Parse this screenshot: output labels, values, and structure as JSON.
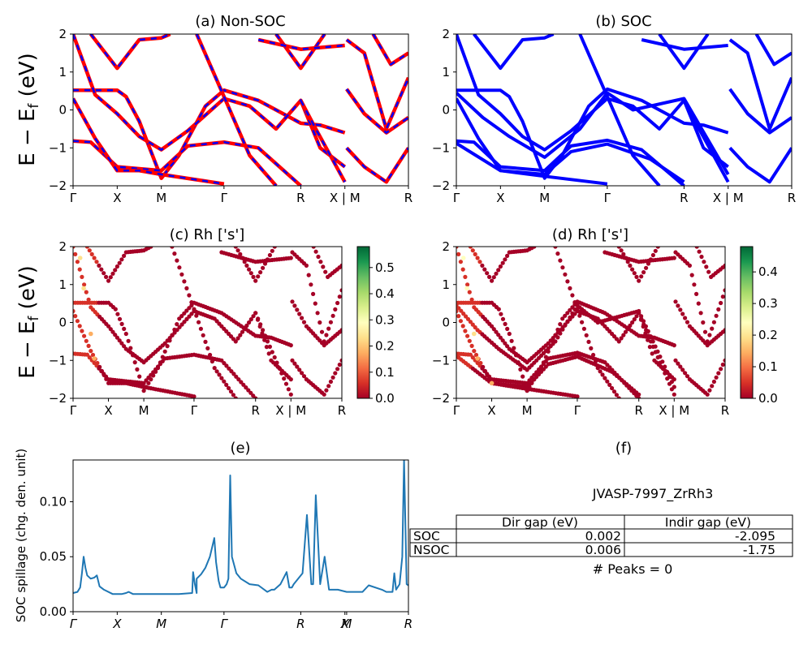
{
  "titles": {
    "a": "(a) Non-SOC",
    "b": "(b) SOC",
    "c": "(c)  Rh ['s']",
    "d": "(d) Rh ['s']",
    "e": "(e)",
    "f": "(f)"
  },
  "axes": {
    "energy_ylabel": "E − E_f (eV)",
    "spillage_ylabel": "SOC spillage (chg. den. unit)",
    "band_xticks": [
      "Γ",
      "X",
      "M",
      "Γ",
      "R",
      "X | M",
      "R"
    ],
    "band_yticks": [
      "2",
      "1",
      "0",
      "−1",
      "−2"
    ],
    "spill_xticks": [
      "Γ",
      "X",
      "M",
      "Γ",
      "R",
      "X",
      "M",
      "R"
    ],
    "spill_yticks": [
      "0.00",
      "0.05",
      "0.10"
    ],
    "cbar_c_ticks": [
      "0.0",
      "0.1",
      "0.2",
      "0.3",
      "0.4",
      "0.5"
    ],
    "cbar_d_ticks": [
      "0.0",
      "0.1",
      "0.2",
      "0.3",
      "0.4"
    ]
  },
  "info": {
    "material": "JVASP-7997_ZrRh3",
    "col_dir": "Dir gap (eV)",
    "col_indir": "Indir gap (eV)",
    "rows": [
      {
        "label": "SOC",
        "dir": "0.002",
        "indir": "-2.095"
      },
      {
        "label": "NSOC",
        "dir": "0.006",
        "indir": "-1.75"
      }
    ],
    "peaks": "# Peaks = 0"
  },
  "colors": {
    "nonsoc_dash": "#0000ff",
    "nonsoc_line": "#ff0000",
    "soc_line": "#0000ff",
    "spillage_line": "#1f77b4",
    "colormap": "RdYlGn"
  },
  "chart_data": [
    {
      "type": "line",
      "panel": "a",
      "title": "(a) Non-SOC",
      "ylabel": "E − E_f (eV)",
      "ylim": [
        -2,
        2
      ],
      "xticks": [
        "Γ",
        "X",
        "M",
        "Γ",
        "R",
        "X | M",
        "R"
      ],
      "k_positions": [
        0,
        0.5,
        1.0,
        1.71,
        2.58,
        3.08,
        3.8
      ],
      "series_note": "blue dashed over red solid (same bands)",
      "bands": [
        [
          [
            0,
            0.52
          ],
          [
            0.5,
            0.52
          ],
          [
            0.6,
            0.35
          ],
          [
            0.75,
            -0.3
          ],
          [
            1.0,
            -1.8
          ],
          [
            1.2,
            -1.2
          ],
          [
            1.5,
            0.1
          ],
          [
            1.71,
            0.52
          ],
          [
            2.1,
            0.25
          ],
          [
            2.58,
            -0.35
          ],
          [
            2.8,
            -0.4
          ],
          [
            3.08,
            -0.6
          ]
        ],
        [
          [
            0,
            -0.82
          ],
          [
            0.2,
            -0.85
          ],
          [
            0.5,
            -1.5
          ],
          [
            0.75,
            -1.55
          ],
          [
            1.0,
            -1.6
          ],
          [
            1.3,
            -0.95
          ],
          [
            1.71,
            -0.85
          ],
          [
            2.1,
            -1.0
          ],
          [
            2.58,
            -2.0
          ]
        ],
        [
          [
            0,
            2.0
          ],
          [
            0.25,
            0.4
          ],
          [
            0.5,
            -0.1
          ],
          [
            0.75,
            -0.7
          ],
          [
            1.0,
            -1.05
          ],
          [
            1.3,
            -0.55
          ],
          [
            1.71,
            0.3
          ],
          [
            2.0,
            0.1
          ],
          [
            2.3,
            -0.5
          ],
          [
            2.58,
            0.25
          ],
          [
            2.8,
            -1.0
          ],
          [
            3.08,
            -1.5
          ]
        ],
        [
          [
            0,
            0.3
          ],
          [
            0.25,
            -0.75
          ],
          [
            0.5,
            -1.6
          ],
          [
            0.75,
            -1.6
          ],
          [
            1.0,
            -1.7
          ],
          [
            1.71,
            -1.95
          ]
        ],
        [
          [
            0.2,
            2.0
          ],
          [
            0.5,
            1.1
          ],
          [
            0.75,
            1.85
          ],
          [
            1.0,
            1.9
          ],
          [
            1.1,
            2.0
          ]
        ],
        [
          [
            1.4,
            2.0
          ],
          [
            1.71,
            0.35
          ],
          [
            2.0,
            -1.2
          ],
          [
            2.3,
            -2.0
          ]
        ],
        [
          [
            2.3,
            2.0
          ],
          [
            2.58,
            1.1
          ],
          [
            2.85,
            2.0
          ]
        ],
        [
          [
            2.58,
            0.25
          ],
          [
            2.75,
            -0.5
          ],
          [
            3.08,
            -1.9
          ]
        ],
        [
          [
            3.1,
            1.85
          ],
          [
            3.3,
            1.5
          ],
          [
            3.55,
            -0.5
          ],
          [
            3.8,
            0.85
          ]
        ],
        [
          [
            3.1,
            0.55
          ],
          [
            3.3,
            -0.1
          ],
          [
            3.55,
            -0.6
          ],
          [
            3.8,
            -0.2
          ]
        ],
        [
          [
            3.1,
            -1.0
          ],
          [
            3.3,
            -1.5
          ],
          [
            3.55,
            -1.9
          ],
          [
            3.8,
            -1.0
          ]
        ],
        [
          [
            3.4,
            2.0
          ],
          [
            3.6,
            1.2
          ],
          [
            3.8,
            1.5
          ]
        ],
        [
          [
            2.1,
            1.85
          ],
          [
            2.58,
            1.6
          ],
          [
            3.08,
            1.7
          ]
        ]
      ]
    },
    {
      "type": "line",
      "panel": "b",
      "title": "(b) SOC",
      "ylabel": "",
      "ylim": [
        -2,
        2
      ],
      "xticks": [
        "Γ",
        "X",
        "M",
        "Γ",
        "R",
        "X | M",
        "R"
      ],
      "k_positions": [
        0,
        0.5,
        1.0,
        1.71,
        2.58,
        3.08,
        3.8
      ],
      "bands": [
        [
          [
            0,
            0.52
          ],
          [
            0.5,
            0.52
          ],
          [
            0.6,
            0.35
          ],
          [
            0.75,
            -0.3
          ],
          [
            1.0,
            -1.8
          ],
          [
            1.2,
            -1.2
          ],
          [
            1.5,
            0.1
          ],
          [
            1.71,
            0.55
          ],
          [
            2.1,
            0.25
          ],
          [
            2.58,
            -0.35
          ],
          [
            2.8,
            -0.4
          ],
          [
            3.08,
            -0.6
          ]
        ],
        [
          [
            0,
            0.45
          ],
          [
            0.3,
            -0.2
          ],
          [
            0.6,
            -0.7
          ],
          [
            1.0,
            -1.25
          ],
          [
            1.4,
            -0.5
          ],
          [
            1.71,
            0.45
          ],
          [
            2.0,
            0.0
          ],
          [
            2.58,
            0.3
          ],
          [
            3.08,
            -1.7
          ]
        ],
        [
          [
            0,
            -0.82
          ],
          [
            0.2,
            -0.85
          ],
          [
            0.5,
            -1.5
          ],
          [
            1.0,
            -1.6
          ],
          [
            1.3,
            -0.95
          ],
          [
            1.71,
            -0.8
          ],
          [
            2.1,
            -1.05
          ],
          [
            2.58,
            -2.0
          ]
        ],
        [
          [
            0,
            -0.88
          ],
          [
            0.5,
            -1.6
          ],
          [
            1.0,
            -1.7
          ],
          [
            1.3,
            -1.1
          ],
          [
            1.71,
            -0.9
          ],
          [
            2.2,
            -1.3
          ],
          [
            2.58,
            -1.9
          ]
        ],
        [
          [
            0,
            2.0
          ],
          [
            0.25,
            0.4
          ],
          [
            0.5,
            -0.1
          ],
          [
            0.75,
            -0.7
          ],
          [
            1.0,
            -1.05
          ],
          [
            1.3,
            -0.55
          ],
          [
            1.71,
            0.3
          ],
          [
            2.0,
            0.1
          ],
          [
            2.3,
            -0.5
          ],
          [
            2.58,
            0.25
          ],
          [
            2.8,
            -1.0
          ],
          [
            3.08,
            -1.5
          ]
        ],
        [
          [
            0,
            0.3
          ],
          [
            0.25,
            -0.75
          ],
          [
            0.5,
            -1.6
          ],
          [
            1.0,
            -1.75
          ],
          [
            1.71,
            -1.95
          ]
        ],
        [
          [
            0.2,
            2.0
          ],
          [
            0.5,
            1.1
          ],
          [
            0.75,
            1.85
          ],
          [
            1.0,
            1.9
          ],
          [
            1.1,
            2.0
          ]
        ],
        [
          [
            1.4,
            2.0
          ],
          [
            1.71,
            0.35
          ],
          [
            2.0,
            -1.2
          ],
          [
            2.3,
            -2.0
          ]
        ],
        [
          [
            2.3,
            2.0
          ],
          [
            2.58,
            1.1
          ],
          [
            2.85,
            2.0
          ]
        ],
        [
          [
            2.58,
            0.25
          ],
          [
            2.75,
            -0.5
          ],
          [
            3.08,
            -1.9
          ]
        ],
        [
          [
            3.1,
            1.85
          ],
          [
            3.3,
            1.5
          ],
          [
            3.55,
            -0.5
          ],
          [
            3.8,
            0.85
          ]
        ],
        [
          [
            3.1,
            0.55
          ],
          [
            3.3,
            -0.1
          ],
          [
            3.55,
            -0.6
          ],
          [
            3.8,
            -0.2
          ]
        ],
        [
          [
            3.1,
            -1.0
          ],
          [
            3.3,
            -1.5
          ],
          [
            3.55,
            -1.9
          ],
          [
            3.8,
            -1.0
          ]
        ],
        [
          [
            3.4,
            2.0
          ],
          [
            3.6,
            1.2
          ],
          [
            3.8,
            1.5
          ]
        ],
        [
          [
            2.1,
            1.85
          ],
          [
            2.58,
            1.6
          ],
          [
            3.08,
            1.7
          ]
        ]
      ]
    },
    {
      "type": "scatter",
      "panel": "c",
      "title": "(c)  Rh ['s']",
      "ylabel": "E − E_f (eV)",
      "ylim": [
        -2,
        2
      ],
      "colorbar_range": [
        0,
        0.58
      ],
      "colorbar_ticks": [
        0,
        0.1,
        0.2,
        0.3,
        0.4,
        0.5
      ],
      "note": "same bands as (a), points colored by Rh s weight; mostly ~0.02, a few up to ~0.25",
      "highlight_points": [
        [
          0.1,
          1.7,
          0.25
        ],
        [
          0.15,
          0.9,
          0.25
        ],
        [
          0.25,
          -0.3,
          0.2
        ],
        [
          0.3,
          -0.95,
          0.15
        ]
      ]
    },
    {
      "type": "scatter",
      "panel": "d",
      "title": "(d) Rh ['s']",
      "ylabel": "",
      "ylim": [
        -2,
        2
      ],
      "colorbar_range": [
        0,
        0.48
      ],
      "colorbar_ticks": [
        0,
        0.1,
        0.2,
        0.3,
        0.4
      ],
      "note": "same bands as (b), points colored by Rh s weight",
      "highlight_points": [
        [
          0.1,
          1.7,
          0.25
        ],
        [
          0.15,
          0.9,
          0.25
        ],
        [
          0.25,
          -0.3,
          0.2
        ],
        [
          0.3,
          -0.95,
          0.15
        ],
        [
          0.5,
          -1.6,
          0.12
        ]
      ]
    },
    {
      "type": "line",
      "panel": "e",
      "title": "(e)",
      "ylabel": "SOC spillage (chg. den. unit)",
      "ylim": [
        0,
        0.138
      ],
      "xticks": [
        "Γ",
        "X",
        "M",
        "Γ",
        "R",
        "X",
        "M",
        "R"
      ],
      "k_positions": [
        0,
        0.5,
        1.0,
        1.71,
        2.58,
        3.08,
        3.1,
        3.8
      ],
      "x": [
        0,
        0.05,
        0.08,
        0.1,
        0.12,
        0.14,
        0.16,
        0.2,
        0.24,
        0.27,
        0.3,
        0.35,
        0.45,
        0.55,
        0.6,
        0.63,
        0.68,
        0.75,
        0.9,
        1.0,
        1.2,
        1.4,
        1.35,
        1.36,
        1.38,
        1.4,
        1.45,
        1.5,
        1.55,
        1.58,
        1.6,
        1.62,
        1.65,
        1.67,
        1.69,
        1.71,
        1.74,
        1.76,
        1.78,
        1.8,
        1.85,
        1.9,
        2.0,
        2.1,
        2.2,
        2.25,
        2.28,
        2.35,
        2.42,
        2.45,
        2.48,
        2.5,
        2.6,
        2.65,
        2.7,
        2.72,
        2.75,
        2.8,
        2.85,
        2.9,
        3.0,
        3.1,
        3.2,
        3.28,
        3.35,
        3.5,
        3.55,
        3.6,
        3.62,
        3.64,
        3.66,
        3.7,
        3.73,
        3.75,
        3.78,
        3.8
      ],
      "y": [
        0.017,
        0.018,
        0.022,
        0.035,
        0.05,
        0.04,
        0.033,
        0.03,
        0.031,
        0.033,
        0.023,
        0.02,
        0.016,
        0.016,
        0.017,
        0.018,
        0.016,
        0.016,
        0.016,
        0.016,
        0.016,
        0.017,
        0.017,
        0.036,
        0.025,
        0.03,
        0.034,
        0.04,
        0.05,
        0.06,
        0.067,
        0.045,
        0.028,
        0.022,
        0.022,
        0.022,
        0.025,
        0.03,
        0.124,
        0.05,
        0.035,
        0.03,
        0.025,
        0.024,
        0.018,
        0.02,
        0.02,
        0.025,
        0.036,
        0.022,
        0.022,
        0.025,
        0.035,
        0.088,
        0.025,
        0.025,
        0.106,
        0.025,
        0.05,
        0.02,
        0.02,
        0.018,
        0.018,
        0.018,
        0.024,
        0.02,
        0.018,
        0.018,
        0.018,
        0.035,
        0.02,
        0.025,
        0.05,
        0.138,
        0.025,
        0.024
      ]
    },
    {
      "type": "table",
      "panel": "f",
      "title": "(f)",
      "columns": [
        "",
        "Dir gap (eV)",
        "Indir gap (eV)"
      ],
      "rows": [
        [
          "SOC",
          "0.002",
          "-2.095"
        ],
        [
          "NSOC",
          "0.006",
          "-1.75"
        ]
      ]
    }
  ]
}
